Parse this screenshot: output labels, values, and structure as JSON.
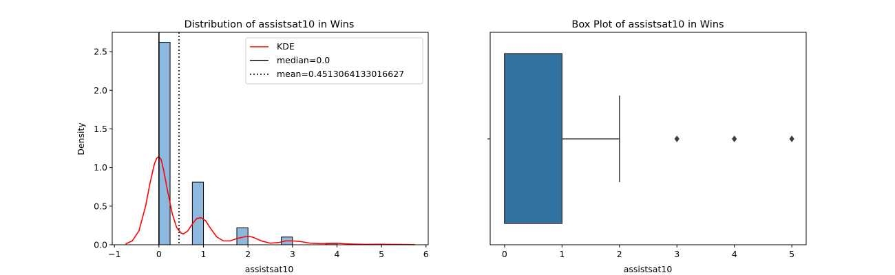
{
  "chart_data": [
    {
      "type": "histogram",
      "title": "Distribution of assistsat10 in Wins",
      "xlabel": "assistsat10",
      "ylabel": "Density",
      "xlim": [
        -1.05,
        6.05
      ],
      "ylim": [
        0,
        2.75
      ],
      "xticks": [
        "−1",
        "0",
        "1",
        "2",
        "3",
        "4",
        "5",
        "6"
      ],
      "xtick_values": [
        -1,
        0,
        1,
        2,
        3,
        4,
        5,
        6
      ],
      "yticks": [
        "0.0",
        "0.5",
        "1.0",
        "1.5",
        "2.0",
        "2.5"
      ],
      "ytick_values": [
        0,
        0.5,
        1.0,
        1.5,
        2.0,
        2.5
      ],
      "bar_color": "#8fb9dc",
      "bars": [
        {
          "x0": 0.0,
          "x1": 0.25,
          "value": 2.62
        },
        {
          "x0": 0.75,
          "x1": 1.0,
          "value": 0.81
        },
        {
          "x0": 1.75,
          "x1": 2.0,
          "value": 0.22
        },
        {
          "x0": 2.75,
          "x1": 3.0,
          "value": 0.1
        },
        {
          "x0": 3.75,
          "x1": 4.0,
          "value": 0.02
        }
      ],
      "kde": {
        "name": "KDE",
        "color": "#ff0000",
        "x": [
          -0.75,
          -0.6,
          -0.45,
          -0.3,
          -0.2,
          -0.1,
          -0.05,
          0.0,
          0.05,
          0.1,
          0.2,
          0.3,
          0.4,
          0.5,
          0.55,
          0.65,
          0.75,
          0.85,
          0.95,
          1.05,
          1.15,
          1.3,
          1.45,
          1.6,
          1.75,
          1.9,
          2.0,
          2.1,
          2.3,
          2.5,
          2.7,
          2.85,
          3.0,
          3.2,
          3.4,
          3.6,
          3.8,
          4.0,
          4.3,
          4.6,
          5.0,
          5.4,
          5.75
        ],
        "y": [
          0.01,
          0.05,
          0.18,
          0.5,
          0.8,
          1.05,
          1.12,
          1.14,
          1.1,
          0.98,
          0.68,
          0.4,
          0.22,
          0.15,
          0.14,
          0.18,
          0.27,
          0.34,
          0.35,
          0.31,
          0.22,
          0.1,
          0.05,
          0.05,
          0.08,
          0.1,
          0.11,
          0.1,
          0.05,
          0.02,
          0.03,
          0.05,
          0.05,
          0.04,
          0.02,
          0.015,
          0.015,
          0.018,
          0.01,
          0.005,
          0.006,
          0.004,
          0.002
        ]
      },
      "median": {
        "value": 0.0,
        "label": "median=0.0",
        "style": "solid",
        "color": "#000000"
      },
      "mean": {
        "value": 0.4513064133016627,
        "label": "mean=0.4513064133016627",
        "style": "dotted",
        "color": "#000000"
      },
      "legend": {
        "placement": "top-right",
        "entries": [
          "KDE",
          "median=0.0",
          "mean=0.4513064133016627"
        ]
      }
    },
    {
      "type": "box",
      "title": "Box Plot of assistsat10 in Wins",
      "xlabel": "assistsat10",
      "xlim": [
        -0.25,
        5.25
      ],
      "xticks": [
        "0",
        "1",
        "2",
        "3",
        "4",
        "5"
      ],
      "xtick_values": [
        0,
        1,
        2,
        3,
        4,
        5
      ],
      "box_color": "#3274a1",
      "edge_color": "#3d3d3d",
      "q1": 0,
      "median": 0,
      "q3": 1,
      "whisker_low": 0,
      "whisker_high": 2,
      "outliers": [
        3,
        4,
        5
      ]
    }
  ]
}
